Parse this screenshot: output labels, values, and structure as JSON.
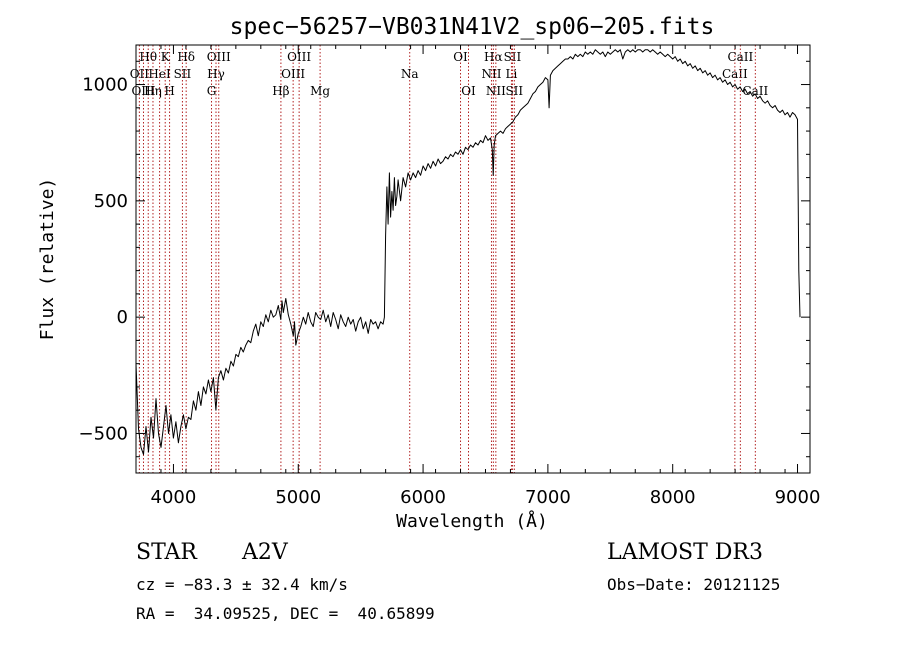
{
  "chart_data": {
    "type": "line",
    "title": "spec−56257−VB031N41V2_sp06−205.fits",
    "xlabel": "Wavelength (Å)",
    "ylabel": "Flux (relative)",
    "xlim": [
      3700,
      9100
    ],
    "ylim": [
      -670,
      1170
    ],
    "xticks": [
      4000,
      5000,
      6000,
      7000,
      8000,
      9000
    ],
    "yticks": [
      -500,
      0,
      500,
      1000
    ],
    "ytick_labels": [
      "−500",
      "0",
      "500",
      "1000"
    ],
    "line_color": "#000000",
    "marker_color": "#b22222",
    "series": [
      {
        "name": "spectrum",
        "points": [
          [
            3700,
            -200
          ],
          [
            3720,
            -480
          ],
          [
            3740,
            -560
          ],
          [
            3760,
            -590
          ],
          [
            3780,
            -470
          ],
          [
            3800,
            -580
          ],
          [
            3820,
            -430
          ],
          [
            3840,
            -520
          ],
          [
            3860,
            -350
          ],
          [
            3880,
            -500
          ],
          [
            3900,
            -560
          ],
          [
            3920,
            -470
          ],
          [
            3940,
            -380
          ],
          [
            3960,
            -500
          ],
          [
            3980,
            -420
          ],
          [
            4000,
            -520
          ],
          [
            4020,
            -450
          ],
          [
            4040,
            -540
          ],
          [
            4060,
            -470
          ],
          [
            4080,
            -420
          ],
          [
            4100,
            -480
          ],
          [
            4120,
            -430
          ],
          [
            4140,
            -440
          ],
          [
            4160,
            -360
          ],
          [
            4180,
            -400
          ],
          [
            4200,
            -320
          ],
          [
            4220,
            -380
          ],
          [
            4240,
            -300
          ],
          [
            4260,
            -330
          ],
          [
            4280,
            -270
          ],
          [
            4300,
            -320
          ],
          [
            4320,
            -260
          ],
          [
            4340,
            -400
          ],
          [
            4360,
            -260
          ],
          [
            4380,
            -230
          ],
          [
            4400,
            -270
          ],
          [
            4420,
            -220
          ],
          [
            4440,
            -240
          ],
          [
            4460,
            -190
          ],
          [
            4480,
            -210
          ],
          [
            4500,
            -160
          ],
          [
            4520,
            -170
          ],
          [
            4540,
            -130
          ],
          [
            4560,
            -150
          ],
          [
            4580,
            -120
          ],
          [
            4600,
            -100
          ],
          [
            4620,
            -110
          ],
          [
            4640,
            -60
          ],
          [
            4660,
            -30
          ],
          [
            4680,
            -80
          ],
          [
            4700,
            -20
          ],
          [
            4720,
            -40
          ],
          [
            4740,
            10
          ],
          [
            4760,
            -20
          ],
          [
            4780,
            30
          ],
          [
            4800,
            0
          ],
          [
            4820,
            10
          ],
          [
            4840,
            50
          ],
          [
            4860,
            -10
          ],
          [
            4870,
            70
          ],
          [
            4880,
            20
          ],
          [
            4900,
            80
          ],
          [
            4920,
            10
          ],
          [
            4940,
            -30
          ],
          [
            4960,
            -80
          ],
          [
            4970,
            -20
          ],
          [
            4980,
            -120
          ],
          [
            5000,
            -70
          ],
          [
            5020,
            -40
          ],
          [
            5040,
            0
          ],
          [
            5060,
            -30
          ],
          [
            5080,
            20
          ],
          [
            5100,
            -20
          ],
          [
            5120,
            -40
          ],
          [
            5140,
            20
          ],
          [
            5160,
            0
          ],
          [
            5180,
            -10
          ],
          [
            5200,
            30
          ],
          [
            5220,
            -20
          ],
          [
            5240,
            10
          ],
          [
            5260,
            -40
          ],
          [
            5280,
            20
          ],
          [
            5300,
            -10
          ],
          [
            5320,
            -50
          ],
          [
            5340,
            10
          ],
          [
            5360,
            -20
          ],
          [
            5380,
            -40
          ],
          [
            5400,
            0
          ],
          [
            5420,
            -30
          ],
          [
            5440,
            -10
          ],
          [
            5460,
            -60
          ],
          [
            5480,
            -20
          ],
          [
            5500,
            0
          ],
          [
            5520,
            -50
          ],
          [
            5540,
            -20
          ],
          [
            5560,
            -70
          ],
          [
            5580,
            -10
          ],
          [
            5600,
            -30
          ],
          [
            5620,
            -20
          ],
          [
            5640,
            -50
          ],
          [
            5660,
            -20
          ],
          [
            5680,
            -30
          ],
          [
            5690,
            0
          ],
          [
            5700,
            350
          ],
          [
            5710,
            560
          ],
          [
            5720,
            400
          ],
          [
            5730,
            620
          ],
          [
            5740,
            430
          ],
          [
            5750,
            540
          ],
          [
            5760,
            460
          ],
          [
            5770,
            600
          ],
          [
            5780,
            480
          ],
          [
            5790,
            520
          ],
          [
            5800,
            590
          ],
          [
            5820,
            500
          ],
          [
            5840,
            600
          ],
          [
            5860,
            560
          ],
          [
            5880,
            620
          ],
          [
            5900,
            590
          ],
          [
            5920,
            620
          ],
          [
            5940,
            600
          ],
          [
            5960,
            630
          ],
          [
            5980,
            610
          ],
          [
            6000,
            650
          ],
          [
            6020,
            630
          ],
          [
            6040,
            660
          ],
          [
            6060,
            640
          ],
          [
            6080,
            670
          ],
          [
            6100,
            650
          ],
          [
            6120,
            680
          ],
          [
            6140,
            660
          ],
          [
            6160,
            670
          ],
          [
            6180,
            690
          ],
          [
            6200,
            680
          ],
          [
            6220,
            700
          ],
          [
            6240,
            690
          ],
          [
            6260,
            710
          ],
          [
            6280,
            700
          ],
          [
            6300,
            720
          ],
          [
            6320,
            700
          ],
          [
            6340,
            730
          ],
          [
            6360,
            720
          ],
          [
            6380,
            740
          ],
          [
            6400,
            730
          ],
          [
            6420,
            750
          ],
          [
            6440,
            740
          ],
          [
            6460,
            760
          ],
          [
            6480,
            750
          ],
          [
            6500,
            780
          ],
          [
            6520,
            760
          ],
          [
            6540,
            770
          ],
          [
            6555,
            720
          ],
          [
            6562,
            610
          ],
          [
            6570,
            740
          ],
          [
            6580,
            780
          ],
          [
            6600,
            790
          ],
          [
            6620,
            800
          ],
          [
            6640,
            790
          ],
          [
            6660,
            810
          ],
          [
            6680,
            820
          ],
          [
            6700,
            830
          ],
          [
            6720,
            840
          ],
          [
            6740,
            860
          ],
          [
            6760,
            870
          ],
          [
            6780,
            890
          ],
          [
            6800,
            900
          ],
          [
            6820,
            910
          ],
          [
            6840,
            920
          ],
          [
            6860,
            940
          ],
          [
            6880,
            960
          ],
          [
            6900,
            970
          ],
          [
            6920,
            990
          ],
          [
            6940,
            1000
          ],
          [
            6960,
            1010
          ],
          [
            6980,
            1030
          ],
          [
            7000,
            1020
          ],
          [
            7010,
            900
          ],
          [
            7020,
            1040
          ],
          [
            7040,
            1060
          ],
          [
            7060,
            1070
          ],
          [
            7080,
            1080
          ],
          [
            7100,
            1090
          ],
          [
            7120,
            1100
          ],
          [
            7140,
            1110
          ],
          [
            7160,
            1110
          ],
          [
            7180,
            1120
          ],
          [
            7200,
            1110
          ],
          [
            7220,
            1130
          ],
          [
            7240,
            1120
          ],
          [
            7260,
            1130
          ],
          [
            7280,
            1120
          ],
          [
            7300,
            1140
          ],
          [
            7320,
            1130
          ],
          [
            7340,
            1140
          ],
          [
            7360,
            1130
          ],
          [
            7380,
            1150
          ],
          [
            7400,
            1140
          ],
          [
            7420,
            1130
          ],
          [
            7440,
            1140
          ],
          [
            7460,
            1120
          ],
          [
            7480,
            1140
          ],
          [
            7500,
            1130
          ],
          [
            7520,
            1140
          ],
          [
            7540,
            1150
          ],
          [
            7560,
            1140
          ],
          [
            7580,
            1150
          ],
          [
            7600,
            1110
          ],
          [
            7620,
            1140
          ],
          [
            7640,
            1150
          ],
          [
            7660,
            1140
          ],
          [
            7680,
            1150
          ],
          [
            7700,
            1140
          ],
          [
            7720,
            1150
          ],
          [
            7740,
            1150
          ],
          [
            7760,
            1140
          ],
          [
            7780,
            1150
          ],
          [
            7800,
            1150
          ],
          [
            7820,
            1140
          ],
          [
            7840,
            1150
          ],
          [
            7860,
            1140
          ],
          [
            7880,
            1130
          ],
          [
            7900,
            1140
          ],
          [
            7920,
            1130
          ],
          [
            7940,
            1120
          ],
          [
            7960,
            1130
          ],
          [
            7980,
            1120
          ],
          [
            8000,
            1110
          ],
          [
            8020,
            1120
          ],
          [
            8040,
            1100
          ],
          [
            8060,
            1110
          ],
          [
            8080,
            1090
          ],
          [
            8100,
            1100
          ],
          [
            8120,
            1080
          ],
          [
            8140,
            1090
          ],
          [
            8160,
            1070
          ],
          [
            8180,
            1080
          ],
          [
            8200,
            1060
          ],
          [
            8220,
            1070
          ],
          [
            8240,
            1050
          ],
          [
            8260,
            1060
          ],
          [
            8280,
            1040
          ],
          [
            8300,
            1050
          ],
          [
            8320,
            1030
          ],
          [
            8340,
            1040
          ],
          [
            8360,
            1020
          ],
          [
            8380,
            1030
          ],
          [
            8400,
            1010
          ],
          [
            8420,
            1020
          ],
          [
            8440,
            1000
          ],
          [
            8460,
            1010
          ],
          [
            8480,
            990
          ],
          [
            8500,
            1000
          ],
          [
            8520,
            980
          ],
          [
            8540,
            990
          ],
          [
            8560,
            970
          ],
          [
            8580,
            980
          ],
          [
            8600,
            960
          ],
          [
            8620,
            970
          ],
          [
            8640,
            950
          ],
          [
            8660,
            960
          ],
          [
            8680,
            940
          ],
          [
            8700,
            950
          ],
          [
            8720,
            930
          ],
          [
            8740,
            920
          ],
          [
            8760,
            930
          ],
          [
            8780,
            910
          ],
          [
            8800,
            900
          ],
          [
            8820,
            910
          ],
          [
            8840,
            890
          ],
          [
            8860,
            880
          ],
          [
            8880,
            890
          ],
          [
            8900,
            870
          ],
          [
            8920,
            880
          ],
          [
            8940,
            860
          ],
          [
            8960,
            880
          ],
          [
            8980,
            870
          ],
          [
            9000,
            850
          ],
          [
            9010,
            200
          ],
          [
            9020,
            0
          ]
        ]
      }
    ],
    "lines": [
      {
        "label": "Hθ",
        "wave": 3798,
        "row": 1
      },
      {
        "label": "OII",
        "wave": 3727,
        "row": 2
      },
      {
        "label": "OIII",
        "wave": 3760,
        "row": 3
      },
      {
        "label": "Hη",
        "wave": 3836,
        "row": 3
      },
      {
        "label": "HeI",
        "wave": 3889,
        "row": 2
      },
      {
        "label": "K",
        "wave": 3934,
        "row": 1
      },
      {
        "label": "H",
        "wave": 3969,
        "row": 3
      },
      {
        "label": "SII",
        "wave": 4072,
        "row": 2
      },
      {
        "label": "Hδ",
        "wave": 4102,
        "row": 1
      },
      {
        "label": "G",
        "wave": 4305,
        "row": 3
      },
      {
        "label": "Hγ",
        "wave": 4341,
        "row": 2
      },
      {
        "label": "OIII",
        "wave": 4363,
        "row": 1
      },
      {
        "label": "Hβ",
        "wave": 4861,
        "row": 3
      },
      {
        "label": "OIII",
        "wave": 4959,
        "row": 2
      },
      {
        "label": "OIII",
        "wave": 5007,
        "row": 1
      },
      {
        "label": "Mg",
        "wave": 5175,
        "row": 3
      },
      {
        "label": "Na",
        "wave": 5893,
        "row": 2
      },
      {
        "label": "OI",
        "wave": 6300,
        "row": 1
      },
      {
        "label": "OI",
        "wave": 6364,
        "row": 3
      },
      {
        "label": "NII",
        "wave": 6548,
        "row": 2
      },
      {
        "label": "Hα",
        "wave": 6563,
        "row": 1
      },
      {
        "label": "NII",
        "wave": 6583,
        "row": 3
      },
      {
        "label": "Li",
        "wave": 6708,
        "row": 2
      },
      {
        "label": "SII",
        "wave": 6716,
        "row": 1
      },
      {
        "label": "SII",
        "wave": 6731,
        "row": 3
      },
      {
        "label": "CaII",
        "wave": 8498,
        "row": 2
      },
      {
        "label": "CaII",
        "wave": 8542,
        "row": 1
      },
      {
        "label": "CaII",
        "wave": 8662,
        "row": 3
      }
    ]
  },
  "info": {
    "class": "STAR",
    "subclass": "A2V",
    "survey": "LAMOST DR3",
    "cz": "cz = −83.3 ± 32.4 km/s",
    "obs_date": "Obs−Date: 20121125",
    "coords": "RA =  34.09525, DEC =  40.65899"
  }
}
